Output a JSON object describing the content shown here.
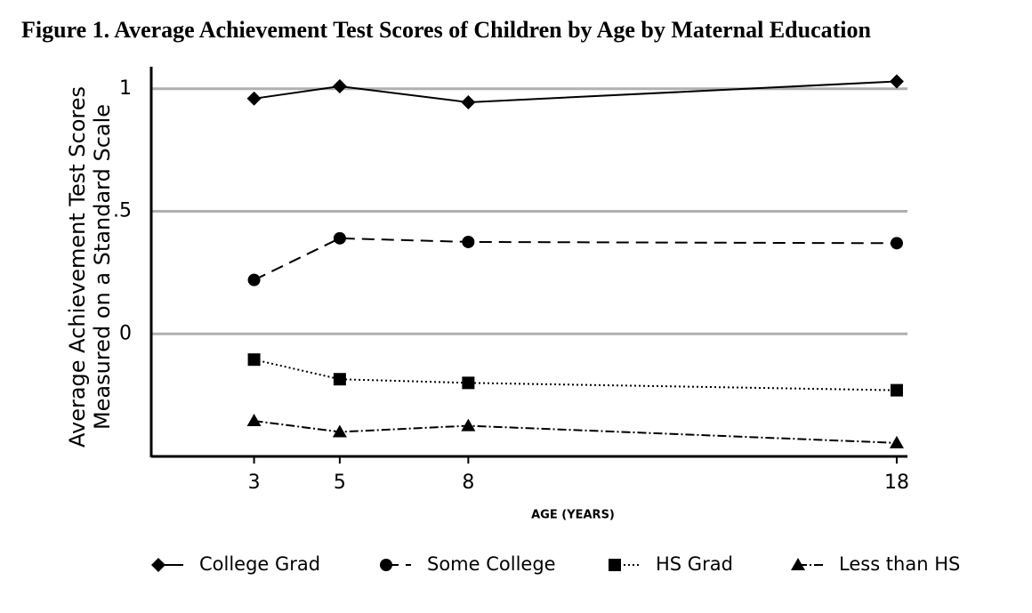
{
  "chart_data": {
    "type": "line",
    "title": "Figure 1. Average Achievement Test Scores of Children by Age by Maternal Education",
    "ylabel": [
      "Average Achievement Test Scores",
      "Measured on a Standard Scale"
    ],
    "xlabel": "AGE (YEARS)",
    "x": [
      3,
      5,
      8,
      18
    ],
    "xlim": [
      0.6,
      18.25
    ],
    "xticks": [
      3,
      5,
      8,
      18
    ],
    "ylim": [
      -0.5,
      1.09
    ],
    "yticks": [
      0,
      {
        "value": 0.5,
        "label": ".5"
      },
      1
    ],
    "grid": true,
    "legend": "bottom",
    "series": [
      {
        "name": "College Grad",
        "color": "#000000",
        "marker": "diamond",
        "dash": "solid",
        "values": [
          0.96,
          1.01,
          0.945,
          1.03
        ]
      },
      {
        "name": "Some College",
        "color": "#000000",
        "marker": "circle",
        "dash": "dashed",
        "values": [
          0.22,
          0.39,
          0.375,
          0.37
        ]
      },
      {
        "name": "HS Grad",
        "color": "#000000",
        "marker": "square",
        "dash": "dotted",
        "values": [
          -0.105,
          -0.185,
          -0.2,
          -0.23
        ]
      },
      {
        "name": "Less than HS",
        "color": "#000000",
        "marker": "triangle",
        "dash": "dashdot",
        "values": [
          -0.355,
          -0.4,
          -0.375,
          -0.445
        ]
      }
    ]
  }
}
